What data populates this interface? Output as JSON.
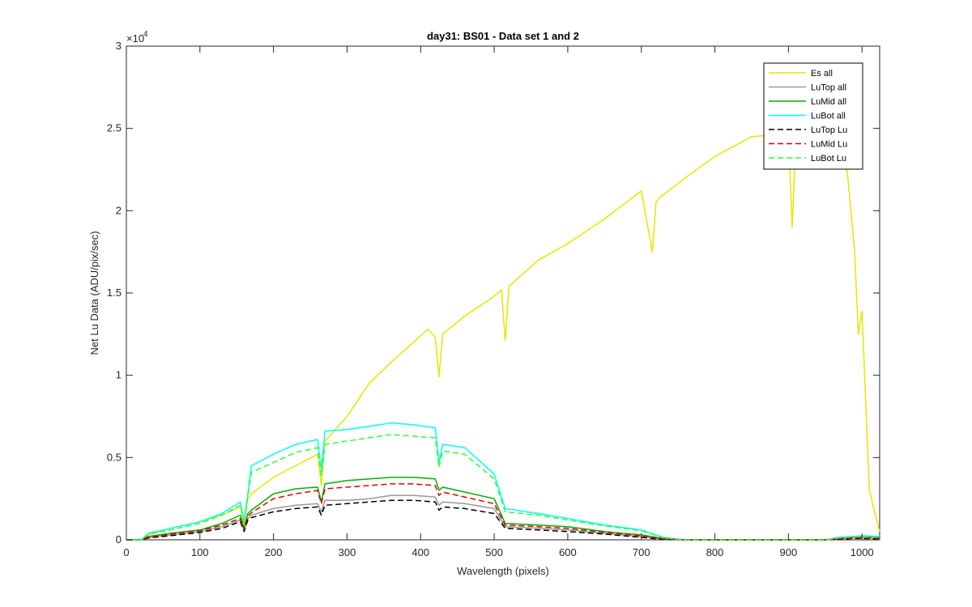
{
  "chart_data": {
    "type": "line",
    "title": "day31: BS01 - Data set 1 and 2",
    "xlabel": "Wavelength (pixels)",
    "ylabel": "Net Lu Data (ADU/pix/sec)",
    "xlim": [
      0,
      1024
    ],
    "ylim": [
      0,
      30000
    ],
    "x_ticks": [
      0,
      100,
      200,
      300,
      400,
      500,
      600,
      700,
      800,
      900,
      1000
    ],
    "x_tick_labels": [
      "0",
      "100",
      "200",
      "300",
      "400",
      "500",
      "600",
      "700",
      "800",
      "900",
      "1000"
    ],
    "y_ticks": [
      0,
      5000,
      10000,
      15000,
      20000,
      25000,
      30000
    ],
    "y_tick_labels": [
      "0",
      "0.5",
      "1",
      "1.5",
      "2",
      "2.5",
      "3"
    ],
    "y_exponent": {
      "base": "×10",
      "power": "4"
    },
    "grid": false,
    "legend_position": "top-right",
    "series": [
      {
        "name": "Es  all",
        "color": "#e6e600",
        "dash": "solid",
        "x": [
          0,
          20,
          30,
          60,
          100,
          130,
          155,
          160,
          165,
          170,
          200,
          230,
          260,
          265,
          270,
          300,
          330,
          360,
          390,
          410,
          420,
          425,
          430,
          460,
          500,
          510,
          515,
          520,
          560,
          600,
          650,
          700,
          715,
          720,
          725,
          760,
          800,
          850,
          880,
          900,
          905,
          910,
          915,
          950,
          980,
          990,
          995,
          1000,
          1010,
          1024
        ],
        "y": [
          0,
          0,
          300,
          700,
          1100,
          1500,
          2000,
          1000,
          2500,
          2800,
          3800,
          4500,
          5200,
          3300,
          6000,
          7500,
          9500,
          10800,
          12000,
          12800,
          12300,
          9900,
          12500,
          13600,
          14800,
          15200,
          12100,
          15400,
          17000,
          18000,
          19500,
          21200,
          17500,
          20500,
          20800,
          22000,
          23300,
          24500,
          24600,
          24800,
          19000,
          24000,
          23900,
          24000,
          22400,
          17500,
          12500,
          13900,
          3000,
          500
        ]
      },
      {
        "name": "LuTop  all",
        "color": "#999999",
        "dash": "solid",
        "x": [
          0,
          20,
          30,
          60,
          100,
          130,
          155,
          160,
          165,
          170,
          200,
          230,
          260,
          265,
          270,
          300,
          330,
          360,
          390,
          420,
          425,
          430,
          460,
          500,
          515,
          560,
          600,
          650,
          700,
          730,
          760,
          800,
          900,
          950,
          970,
          990,
          1000,
          1024
        ],
        "y": [
          0,
          0,
          150,
          300,
          500,
          800,
          1200,
          600,
          1300,
          1500,
          1900,
          2100,
          2200,
          1700,
          2400,
          2400,
          2500,
          2700,
          2700,
          2600,
          2100,
          2300,
          2200,
          1900,
          800,
          700,
          600,
          400,
          200,
          50,
          0,
          0,
          0,
          0,
          100,
          150,
          150,
          120
        ]
      },
      {
        "name": "LuMid  all",
        "color": "#00b300",
        "dash": "solid",
        "x": [
          0,
          20,
          30,
          60,
          100,
          130,
          155,
          160,
          165,
          170,
          200,
          230,
          260,
          265,
          270,
          300,
          330,
          360,
          390,
          420,
          425,
          430,
          460,
          500,
          515,
          560,
          600,
          650,
          700,
          730,
          760,
          800,
          900,
          950,
          970,
          990,
          1000,
          1024
        ],
        "y": [
          0,
          0,
          200,
          400,
          600,
          1000,
          1500,
          700,
          1600,
          1800,
          2800,
          3100,
          3200,
          2300,
          3400,
          3600,
          3700,
          3800,
          3800,
          3700,
          3000,
          3200,
          2900,
          2500,
          1000,
          900,
          800,
          500,
          300,
          80,
          0,
          0,
          0,
          0,
          150,
          200,
          220,
          150
        ]
      },
      {
        "name": "LuBot  all",
        "color": "#00ffff",
        "dash": "solid",
        "x": [
          0,
          20,
          30,
          60,
          100,
          130,
          155,
          160,
          165,
          170,
          200,
          230,
          260,
          265,
          270,
          300,
          330,
          360,
          390,
          420,
          425,
          430,
          460,
          500,
          515,
          560,
          600,
          650,
          700,
          730,
          760,
          800,
          900,
          950,
          970,
          990,
          1000,
          1024
        ],
        "y": [
          0,
          0,
          400,
          700,
          1100,
          1600,
          2300,
          1100,
          2800,
          4500,
          5200,
          5800,
          6100,
          4300,
          6600,
          6700,
          6900,
          7100,
          7000,
          6800,
          4700,
          5800,
          5600,
          4000,
          1900,
          1600,
          1300,
          900,
          600,
          150,
          0,
          0,
          0,
          0,
          150,
          200,
          250,
          200
        ]
      },
      {
        "name": "LuTop  Lu",
        "color": "#000000",
        "dash": "dashed",
        "x": [
          0,
          20,
          30,
          60,
          100,
          130,
          155,
          160,
          165,
          170,
          200,
          230,
          260,
          265,
          270,
          300,
          330,
          360,
          390,
          420,
          425,
          430,
          460,
          500,
          515,
          560,
          600,
          650,
          700,
          730,
          760,
          800,
          900,
          950,
          970,
          990,
          1000,
          1024
        ],
        "y": [
          0,
          0,
          120,
          250,
          450,
          700,
          1100,
          500,
          1200,
          1350,
          1700,
          1900,
          2000,
          1500,
          2100,
          2200,
          2300,
          2400,
          2400,
          2300,
          1800,
          2000,
          1900,
          1600,
          700,
          600,
          500,
          350,
          150,
          30,
          0,
          0,
          0,
          0,
          50,
          80,
          80,
          50
        ]
      },
      {
        "name": "LuMid  Lu",
        "color": "#e60000",
        "dash": "dashed",
        "x": [
          0,
          20,
          30,
          60,
          100,
          130,
          155,
          160,
          165,
          170,
          200,
          230,
          260,
          265,
          270,
          300,
          330,
          360,
          390,
          420,
          425,
          430,
          460,
          500,
          515,
          560,
          600,
          650,
          700,
          730,
          760,
          800,
          900,
          950,
          970,
          990,
          1000,
          1024
        ],
        "y": [
          0,
          0,
          180,
          350,
          550,
          900,
          1300,
          650,
          1450,
          1650,
          2500,
          2800,
          3000,
          2200,
          3100,
          3200,
          3300,
          3400,
          3400,
          3300,
          2700,
          2900,
          2600,
          2200,
          900,
          800,
          700,
          450,
          250,
          60,
          0,
          0,
          0,
          0,
          80,
          120,
          120,
          80
        ]
      },
      {
        "name": "LuBot  Lu",
        "color": "#33ff33",
        "dash": "dashed",
        "x": [
          0,
          20,
          30,
          60,
          100,
          130,
          155,
          160,
          165,
          170,
          200,
          230,
          260,
          265,
          270,
          300,
          330,
          360,
          390,
          420,
          425,
          430,
          460,
          500,
          515,
          560,
          600,
          650,
          700,
          730,
          760,
          800,
          900,
          950,
          970,
          990,
          1000,
          1024
        ],
        "y": [
          0,
          0,
          350,
          600,
          1000,
          1500,
          2100,
          1000,
          2600,
          4100,
          4700,
          5300,
          5600,
          3900,
          5800,
          6000,
          6200,
          6400,
          6300,
          6200,
          4400,
          5400,
          5200,
          3700,
          1700,
          1500,
          1200,
          850,
          550,
          120,
          0,
          0,
          0,
          0,
          120,
          180,
          200,
          150
        ]
      }
    ]
  }
}
